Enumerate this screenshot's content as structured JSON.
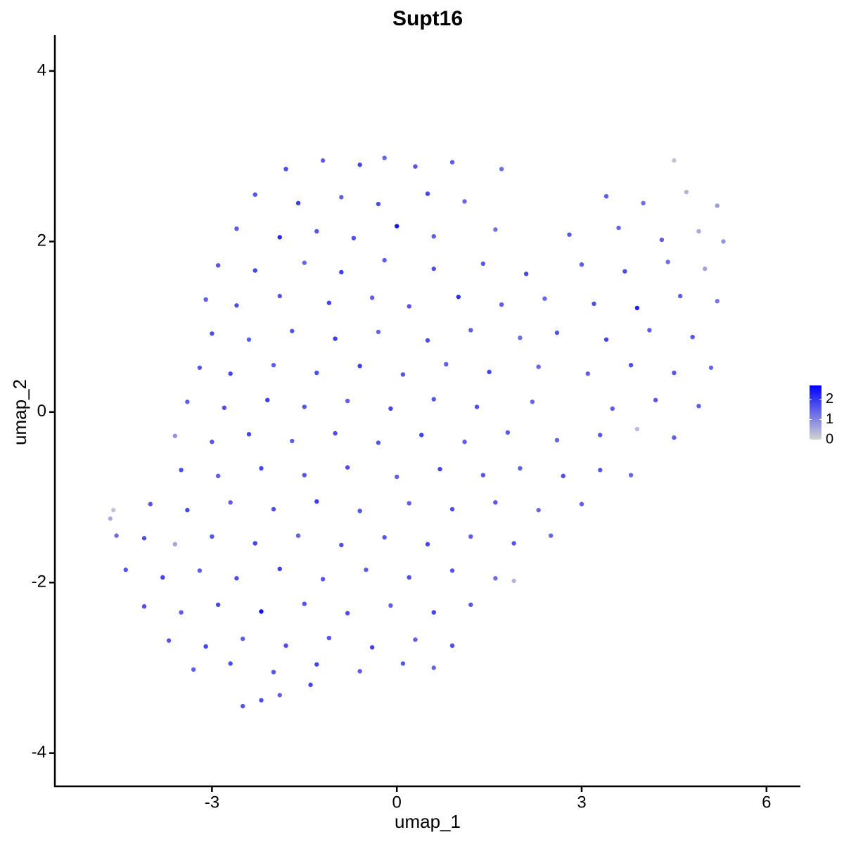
{
  "chart_data": {
    "type": "scatter",
    "title": "Supt16",
    "x_label": "umap_1",
    "y_label": "umap_2",
    "xlim": [
      -5.55,
      6.55
    ],
    "ylim": [
      -4.39,
      4.42
    ],
    "xticks": [
      -3,
      0,
      3,
      6
    ],
    "yticks": [
      -4,
      -2,
      0,
      2,
      4
    ],
    "color_low": "#d3d3d3",
    "color_high": "#0000ff",
    "color_lim": [
      0,
      2.7
    ],
    "color_ticks": [
      0,
      1,
      2
    ],
    "legend_position": "right",
    "x": [
      -1.8,
      -1.2,
      -0.6,
      -0.2,
      0.3,
      0.9,
      1.7,
      4.5,
      -2.3,
      -1.6,
      -0.9,
      -0.3,
      0.5,
      1.1,
      3.4,
      4.0,
      4.7,
      5.2,
      -2.6,
      -1.9,
      -1.3,
      -0.7,
      0.0,
      0.6,
      1.6,
      2.8,
      3.6,
      4.3,
      4.9,
      5.3,
      -2.9,
      -2.3,
      -1.5,
      -0.9,
      -0.2,
      0.6,
      1.4,
      2.1,
      3.0,
      3.7,
      4.4,
      5.0,
      -3.1,
      -2.6,
      -1.9,
      -1.1,
      -0.4,
      0.2,
      1.0,
      1.7,
      2.4,
      3.2,
      3.9,
      4.6,
      5.2,
      -3.0,
      -2.4,
      -1.7,
      -1.0,
      -0.3,
      0.5,
      1.2,
      2.0,
      2.6,
      3.4,
      4.1,
      4.8,
      -3.2,
      -2.7,
      -2.0,
      -1.3,
      -0.6,
      0.1,
      0.8,
      1.5,
      2.3,
      3.1,
      3.8,
      4.5,
      5.1,
      -3.4,
      -2.8,
      -2.1,
      -1.5,
      -0.8,
      -0.1,
      0.6,
      1.3,
      2.2,
      3.5,
      4.2,
      4.9,
      -3.6,
      -3.0,
      -2.4,
      -1.7,
      -1.0,
      -0.3,
      0.4,
      1.1,
      1.8,
      2.6,
      3.3,
      3.9,
      4.5,
      -3.5,
      -2.9,
      -2.2,
      -1.5,
      -0.8,
      0.0,
      0.7,
      1.4,
      2.0,
      2.7,
      3.3,
      3.8,
      -4.0,
      -3.4,
      -2.7,
      -2.0,
      -1.3,
      -0.6,
      0.2,
      0.9,
      1.6,
      2.3,
      3.0,
      -4.65,
      -4.6,
      -4.55,
      -4.1,
      -3.6,
      -3.0,
      -2.3,
      -1.6,
      -0.9,
      -0.2,
      0.5,
      1.2,
      1.9,
      2.5,
      -4.4,
      -3.8,
      -3.2,
      -2.6,
      -1.9,
      -1.2,
      -0.5,
      0.2,
      0.9,
      1.6,
      1.9,
      -4.1,
      -3.5,
      -2.9,
      -2.2,
      -1.5,
      -0.8,
      -0.1,
      0.6,
      1.2,
      -3.7,
      -3.1,
      -2.5,
      -1.8,
      -1.1,
      -0.4,
      0.3,
      0.9,
      -3.3,
      -2.7,
      -2.0,
      -1.3,
      -0.6,
      0.1,
      0.6,
      -2.5,
      -2.2,
      -1.9,
      -1.4
    ],
    "values": [
      2.85,
      2.95,
      2.9,
      2.98,
      2.88,
      2.93,
      2.85,
      2.95,
      2.55,
      2.45,
      2.52,
      2.44,
      2.56,
      2.47,
      2.53,
      2.45,
      2.58,
      2.42,
      2.15,
      2.05,
      2.12,
      2.04,
      2.18,
      2.06,
      2.14,
      2.08,
      2.16,
      2.02,
      2.12,
      2.0,
      1.72,
      1.66,
      1.75,
      1.64,
      1.78,
      1.68,
      1.74,
      1.62,
      1.73,
      1.65,
      1.76,
      1.68,
      1.32,
      1.25,
      1.36,
      1.28,
      1.34,
      1.24,
      1.35,
      1.26,
      1.33,
      1.27,
      1.22,
      1.36,
      1.3,
      0.92,
      0.85,
      0.95,
      0.86,
      0.94,
      0.84,
      0.96,
      0.87,
      0.93,
      0.85,
      0.96,
      0.88,
      0.52,
      0.45,
      0.55,
      0.46,
      0.54,
      0.44,
      0.56,
      0.47,
      0.53,
      0.45,
      0.55,
      0.46,
      0.52,
      0.12,
      0.05,
      0.14,
      0.06,
      0.13,
      0.04,
      0.15,
      0.06,
      0.12,
      0.04,
      0.14,
      0.07,
      -0.28,
      -0.35,
      -0.26,
      -0.34,
      -0.25,
      -0.36,
      -0.27,
      -0.35,
      -0.24,
      -0.33,
      -0.27,
      -0.2,
      -0.3,
      -0.68,
      -0.75,
      -0.66,
      -0.74,
      -0.65,
      -0.76,
      -0.67,
      -0.74,
      -0.66,
      -0.75,
      -0.68,
      -0.74,
      -1.08,
      -1.15,
      -1.06,
      -1.14,
      -1.05,
      -1.16,
      -1.07,
      -1.14,
      -1.06,
      -1.15,
      -1.08,
      -1.25,
      -1.15,
      -1.45,
      -1.48,
      -1.55,
      -1.46,
      -1.54,
      -1.45,
      -1.56,
      -1.47,
      -1.55,
      -1.46,
      -1.54,
      -1.45,
      -1.85,
      -1.94,
      -1.86,
      -1.95,
      -1.84,
      -1.96,
      -1.85,
      -1.94,
      -1.86,
      -1.95,
      -1.98,
      -2.28,
      -2.35,
      -2.26,
      -2.34,
      -2.25,
      -2.36,
      -2.27,
      -2.35,
      -2.26,
      -2.68,
      -2.75,
      -2.66,
      -2.74,
      -2.65,
      -2.76,
      -2.67,
      -2.74,
      -3.02,
      -2.95,
      -3.05,
      -2.96,
      -3.04,
      -2.95,
      -3.0,
      -3.45,
      -3.38,
      -3.32,
      -3.2
    ],
    "expression": [
      1.7,
      1.5,
      1.8,
      1.4,
      1.6,
      1.5,
      1.3,
      0.2,
      1.6,
      1.9,
      1.5,
      1.7,
      1.8,
      1.4,
      1.5,
      1.3,
      0.4,
      0.7,
      1.5,
      2.2,
      1.6,
      1.7,
      2.4,
      1.5,
      1.3,
      1.6,
      1.4,
      1.5,
      0.5,
      0.8,
      1.6,
      1.8,
      1.4,
      1.9,
      1.5,
      1.7,
      1.6,
      1.8,
      1.5,
      1.7,
      1.3,
      0.6,
      1.5,
      1.7,
      1.6,
      1.8,
      1.5,
      1.6,
      2.1,
      1.5,
      1.4,
      1.7,
      2.3,
      1.5,
      1.2,
      1.7,
      1.5,
      1.6,
      1.9,
      1.4,
      1.7,
      1.5,
      1.3,
      1.6,
      1.8,
      1.5,
      1.6,
      1.6,
      1.8,
      1.5,
      1.7,
      1.9,
      1.6,
      1.5,
      1.8,
      1.4,
      1.5,
      1.7,
      1.6,
      1.4,
      1.5,
      1.7,
      1.9,
      1.6,
      1.5,
      1.8,
      1.6,
      1.7,
      1.4,
      1.5,
      1.6,
      1.5,
      0.8,
      1.6,
      1.8,
      1.5,
      1.7,
      1.6,
      1.9,
      1.5,
      1.6,
      1.4,
      1.6,
      0.3,
      1.5,
      1.7,
      1.5,
      1.8,
      1.6,
      1.7,
      1.5,
      1.8,
      1.6,
      1.5,
      1.7,
      1.6,
      1.4,
      1.6,
      1.8,
      1.5,
      1.7,
      1.9,
      1.6,
      1.5,
      1.7,
      1.6,
      1.4,
      1.5,
      0.5,
      0.2,
      1.3,
      1.7,
      0.6,
      1.6,
      1.8,
      1.5,
      1.7,
      1.6,
      1.8,
      1.5,
      1.6,
      1.4,
      1.6,
      1.8,
      1.5,
      1.7,
      1.9,
      1.6,
      1.5,
      1.7,
      1.6,
      1.3,
      0.4,
      1.7,
      1.5,
      1.8,
      2.5,
      1.6,
      1.7,
      1.5,
      1.8,
      1.6,
      1.6,
      1.8,
      1.5,
      1.7,
      1.6,
      1.9,
      1.5,
      1.7,
      1.5,
      1.7,
      1.6,
      1.8,
      1.5,
      1.6,
      1.4,
      1.6,
      1.7,
      1.5,
      1.8
    ]
  }
}
